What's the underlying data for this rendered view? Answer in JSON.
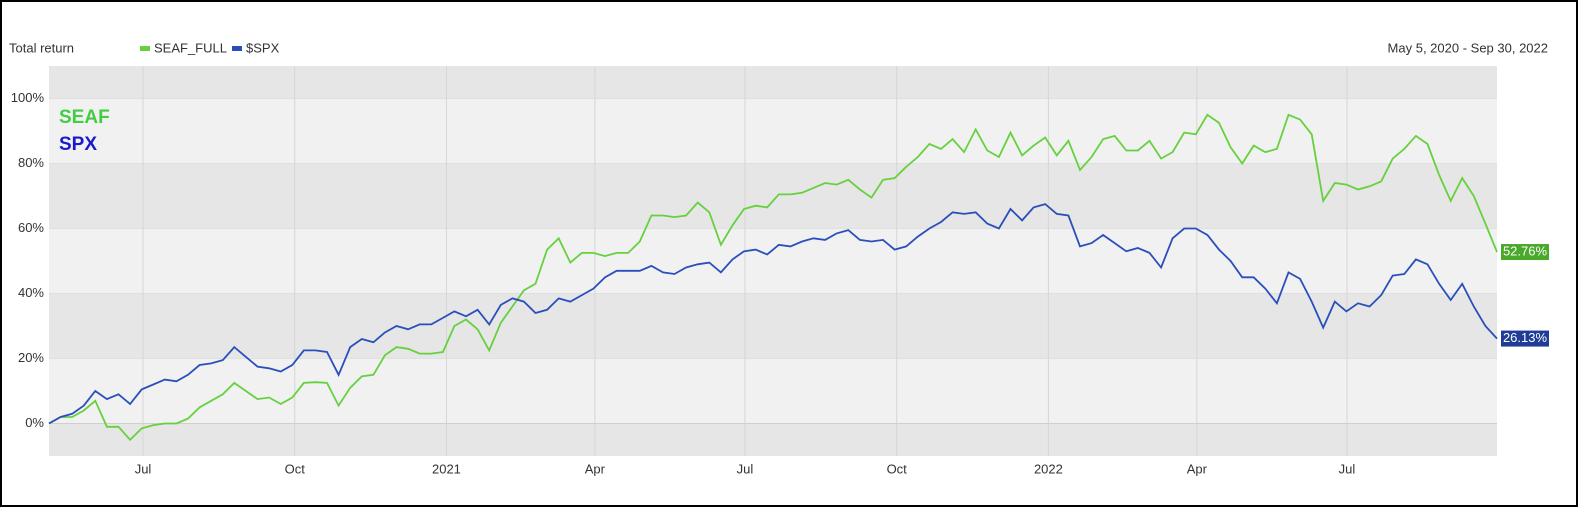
{
  "chart_data": {
    "type": "line",
    "title": "Total return",
    "subtitle": "May 5, 2020 - Sep 30, 2022",
    "annotations": [
      {
        "text": "SEAF",
        "color": "#44cc44"
      },
      {
        "text": "SPX",
        "color": "#1a1acc"
      }
    ],
    "xlim": [
      "2020-05-05",
      "2022-09-30"
    ],
    "xticks": [
      {
        "value": "2020-07",
        "label": "Jul"
      },
      {
        "value": "2020-10",
        "label": "Oct"
      },
      {
        "value": "2021-01",
        "label": "2021"
      },
      {
        "value": "2021-04",
        "label": "Apr"
      },
      {
        "value": "2021-07",
        "label": "Jul"
      },
      {
        "value": "2021-10",
        "label": "Oct"
      },
      {
        "value": "2022-01",
        "label": "2022"
      },
      {
        "value": "2022-04",
        "label": "Apr"
      },
      {
        "value": "2022-07",
        "label": "Jul"
      }
    ],
    "ylim": [
      -10,
      110
    ],
    "yticks": [
      {
        "value": 0,
        "label": "0%"
      },
      {
        "value": 20,
        "label": "20%"
      },
      {
        "value": 40,
        "label": "40%"
      },
      {
        "value": 60,
        "label": "60%"
      },
      {
        "value": 80,
        "label": "80%"
      },
      {
        "value": 100,
        "label": "100%"
      }
    ],
    "grid": true,
    "series": [
      {
        "name": "SEAF_FULL",
        "color": "#66d13f",
        "label_color": "#4aa82a",
        "end_label": "52.76%",
        "values": [
          0,
          2,
          2,
          4,
          7,
          -1,
          -1,
          -5,
          -1.5,
          -0.5,
          0,
          0,
          1.5,
          5,
          7,
          9,
          12.5,
          10,
          7.5,
          8,
          6,
          8,
          12.5,
          12.7,
          12.5,
          5.5,
          11,
          14.5,
          15,
          21,
          23.5,
          23,
          21.5,
          21.5,
          22,
          30,
          32,
          29,
          22.5,
          31,
          36,
          41,
          43,
          53.5,
          57,
          49.5,
          52.5,
          52.5,
          51.5,
          52.5,
          52.5,
          56,
          64,
          64,
          63.5,
          64,
          68,
          65,
          55,
          61,
          66,
          67,
          66.5,
          70.5,
          70.5,
          71,
          72.5,
          74,
          73.5,
          75,
          72,
          69.5,
          75,
          75.5,
          79,
          82,
          86,
          84.5,
          87.5,
          83.5,
          90.5,
          84,
          82,
          89.5,
          82.5,
          85.5,
          88,
          82.5,
          87,
          78,
          82,
          87.5,
          88.5,
          84,
          84,
          87,
          81.5,
          83.5,
          89.5,
          89,
          95,
          92.5,
          85,
          80,
          85.5,
          83.5,
          84.5,
          95,
          93.5,
          89,
          68.5,
          74,
          73.5,
          72,
          73,
          74.5,
          81.5,
          84.5,
          88.5,
          86,
          76.5,
          68.5,
          75.5,
          70,
          61.5,
          52.76
        ]
      },
      {
        "name": "$SPX",
        "color": "#2a4fbb",
        "label_color": "#1f3d96",
        "end_label": "26.13%",
        "values": [
          0,
          2,
          3,
          5.5,
          10,
          7.5,
          9,
          6,
          10.5,
          12,
          13.5,
          13,
          15,
          18,
          18.5,
          19.5,
          23.5,
          20.5,
          17.5,
          17,
          16,
          18,
          22.5,
          22.5,
          22,
          15,
          23.5,
          26,
          25,
          28,
          30,
          29,
          30.5,
          30.5,
          32.5,
          34.5,
          33,
          35,
          30.5,
          36.5,
          38.5,
          37.5,
          34,
          35,
          38.5,
          37.5,
          39.5,
          41.5,
          45,
          47,
          47,
          47,
          48.5,
          46.5,
          46,
          48,
          49,
          49.5,
          46.5,
          50.5,
          53,
          53.5,
          52,
          55,
          54.5,
          56,
          57,
          56.5,
          58.5,
          59.5,
          56.5,
          56,
          56.5,
          53.5,
          54.5,
          57.5,
          60,
          62,
          65,
          64.5,
          65,
          61.5,
          60,
          66,
          62.5,
          66.5,
          67.5,
          64.5,
          64,
          54.5,
          55.5,
          58,
          55.5,
          53,
          54,
          52.5,
          48,
          57,
          60,
          60,
          58,
          53.5,
          50,
          45,
          45,
          41.5,
          37,
          46.5,
          44.5,
          37.5,
          29.5,
          37.5,
          34.5,
          37,
          36,
          39.5,
          45.5,
          46,
          50.5,
          49,
          43,
          38,
          43,
          36,
          30,
          26.13
        ]
      }
    ]
  }
}
